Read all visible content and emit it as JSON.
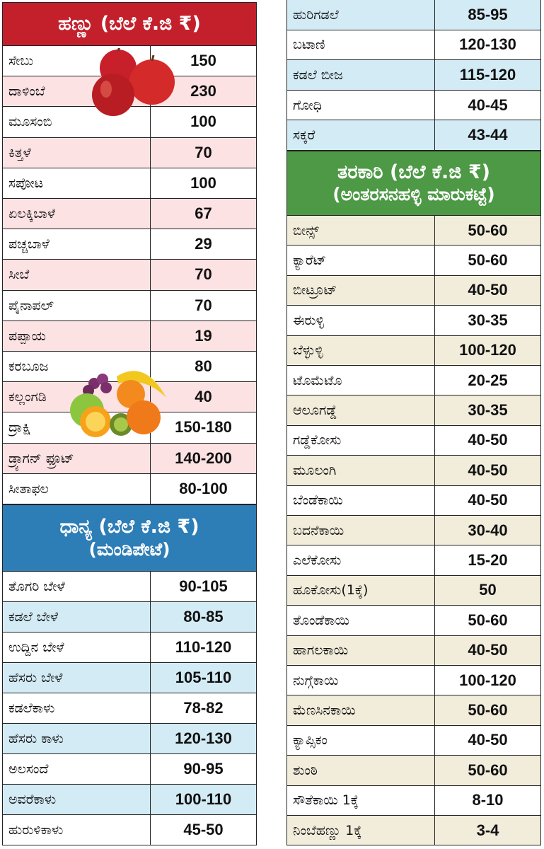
{
  "fruits": {
    "title": "ಹಣ್ಣು (ಬೆಲೆ ಕೆ.ಜಿ ₹)",
    "rows": [
      {
        "name": "ಸೇಬು",
        "price": 150
      },
      {
        "name": "ದಾಳಿಂಬೆ",
        "price": 230
      },
      {
        "name": "ಮೂಸಂಬಿ",
        "price": 100
      },
      {
        "name": "ಕಿತ್ತಳೆ",
        "price": 70
      },
      {
        "name": "ಸಪೋಟ",
        "price": 100
      },
      {
        "name": "ಏಲಕ್ಕಿಬಾಳೆ",
        "price": 67
      },
      {
        "name": "ಪಚ್ಚಬಾಳೆ",
        "price": 29
      },
      {
        "name": "ಸೀಬೆ",
        "price": 70
      },
      {
        "name": "ಪೈನಾಪಲ್",
        "price": 70
      },
      {
        "name": "ಪಪ್ಪಾಯ",
        "price": 19
      },
      {
        "name": "ಕರಬೂಜ",
        "price": 80
      },
      {
        "name": "ಕಲ್ಲಂಗಡಿ",
        "price": 40
      },
      {
        "name": "ದ್ರಾಕ್ಷಿ",
        "price": "150-180"
      },
      {
        "name": "ಡ್ರ್ಯಾಗನ್ ಫ್ರೂಟ್",
        "price": "140-200"
      },
      {
        "name": "ಸೀತಾಫಲ",
        "price": "80-100"
      }
    ]
  },
  "grains": {
    "title": "ಧಾನ್ಯ (ಬೆಲೆ ಕೆ.ಜಿ ₹)",
    "subtitle": "(ಮಂಡಿಪೇಟೆ)",
    "rows": [
      {
        "name": "ತೊಗರಿ ಬೇಳೆ",
        "price": "90-105"
      },
      {
        "name": "ಕಡಲೆ ಬೇಳೆ",
        "price": "80-85"
      },
      {
        "name": "ಉದ್ದಿನ ಬೇಳೆ",
        "price": "110-120"
      },
      {
        "name": "ಹೆಸರು ಬೇಳೆ",
        "price": "105-110"
      },
      {
        "name": "ಕಡಲೆಕಾಳು",
        "price": "78-82"
      },
      {
        "name": "ಹೆಸರು ಕಾಳು",
        "price": "120-130"
      },
      {
        "name": "ಅಲಸಂದೆ",
        "price": "90-95"
      },
      {
        "name": "ಅವರೆಕಾಳು",
        "price": "100-110"
      },
      {
        "name": "ಹುರುಳಿಕಾಳು",
        "price": "45-50"
      },
      {
        "name": "ಹುರಿಗಡಲೆ",
        "price": "85-95"
      },
      {
        "name": "ಬಟಾಣಿ",
        "price": "120-130"
      },
      {
        "name": "ಕಡಲೆ ಬೀಜ",
        "price": "115-120"
      },
      {
        "name": "ಗೋಧಿ",
        "price": "40-45"
      },
      {
        "name": "ಸಕ್ಕರೆ",
        "price": "43-44"
      }
    ]
  },
  "vegetables": {
    "title": "ತರಕಾರಿ (ಬೆಲೆ ಕೆ.ಜಿ ₹)",
    "subtitle": "(ಅಂತರಸನಹಳ್ಳಿ ಮಾರುಕಟ್ಟೆ)",
    "rows": [
      {
        "name": "ಬೀನ್ಸ್",
        "price": "50-60"
      },
      {
        "name": "ಕ್ಯಾರೆಟ್",
        "price": "50-60"
      },
      {
        "name": "ಬೀಟ್ರೂಟ್",
        "price": "40-50"
      },
      {
        "name": "ಈರುಳ್ಳಿ",
        "price": "30-35"
      },
      {
        "name": "ಬೆಳ್ಳುಳ್ಳಿ",
        "price": "100-120"
      },
      {
        "name": "ಟೊಮೆಟೊ",
        "price": "20-25"
      },
      {
        "name": "ಆಲೂಗಡ್ಡೆ",
        "price": "30-35"
      },
      {
        "name": "ಗಡ್ಡೆಕೋಸು",
        "price": "40-50"
      },
      {
        "name": "ಮೂಲಂಗಿ",
        "price": "40-50"
      },
      {
        "name": "ಬೆಂಡೆಕಾಯಿ",
        "price": "40-50"
      },
      {
        "name": "ಬದನೆಕಾಯಿ",
        "price": "30-40"
      },
      {
        "name": "ಎಲೆಕೋಸು",
        "price": "15-20"
      },
      {
        "name": "ಹೂಕೋಸು(1ಕ್ಕೆ)",
        "price": 50
      },
      {
        "name": "ತೊಂಡೆಕಾಯಿ",
        "price": "50-60"
      },
      {
        "name": "ಹಾಗಲಕಾಯಿ",
        "price": "40-50"
      },
      {
        "name": "ನುಗ್ಗೆಕಾಯಿ",
        "price": "100-120"
      },
      {
        "name": "ಮೆಣಸಿನಕಾಯಿ",
        "price": "50-60"
      },
      {
        "name": "ಕ್ಯಾಪ್ಸಿಕಂ",
        "price": "40-50"
      },
      {
        "name": "ಶುಂಠಿ",
        "price": "50-60"
      },
      {
        "name": "ಸೌತೆಕಾಯಿ 1ಕ್ಕೆ",
        "price": "8-10"
      },
      {
        "name": "ನಿಂಬೆಹಣ್ಣು 1ಕ್ಕೆ",
        "price": "3-4"
      }
    ]
  }
}
